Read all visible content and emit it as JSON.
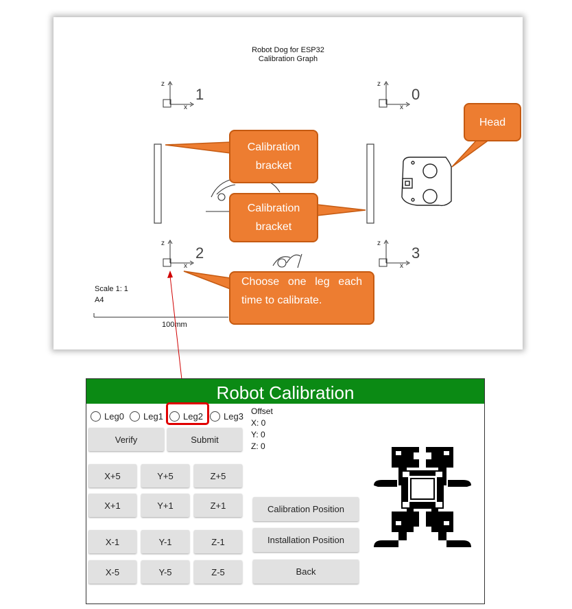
{
  "sheet": {
    "title_line1": "Robot Dog for ESP32",
    "title_line2": "Calibration Graph",
    "legs": [
      "0",
      "1",
      "2",
      "3"
    ],
    "axis": {
      "x": "x",
      "z": "z"
    },
    "scale": "Scale 1: 1",
    "paper": "A4",
    "ruler_label": "100mm"
  },
  "callouts": {
    "head": "Head",
    "bracket_top_line1": "Calibration",
    "bracket_top_line2": "bracket",
    "bracket_bottom_line1": "Calibration",
    "bracket_bottom_line2": "bracket",
    "choose_line1": "Choose one leg each",
    "choose_line2": "time to calibrate.",
    "color": "#ed7d31"
  },
  "app": {
    "title": "Robot Calibration",
    "header_color": "#0b8a14",
    "highlight_color": "#e00000",
    "legs": [
      "Leg0",
      "Leg1",
      "Leg2",
      "Leg3"
    ],
    "offset": {
      "label": "Offset",
      "x": "X: 0",
      "y": "Y: 0",
      "z": "Z: 0"
    },
    "buttons": {
      "verify": "Verify",
      "submit": "Submit",
      "x_plus5": "X+5",
      "y_plus5": "Y+5",
      "z_plus5": "Z+5",
      "x_plus1": "X+1",
      "y_plus1": "Y+1",
      "z_plus1": "Z+1",
      "x_minus1": "X-1",
      "y_minus1": "Y-1",
      "z_minus1": "Z-1",
      "x_minus5": "X-5",
      "y_minus5": "Y-5",
      "z_minus5": "Z-5",
      "calibration_position": "Calibration Position",
      "installation_position": "Installation Position",
      "back": "Back"
    }
  }
}
